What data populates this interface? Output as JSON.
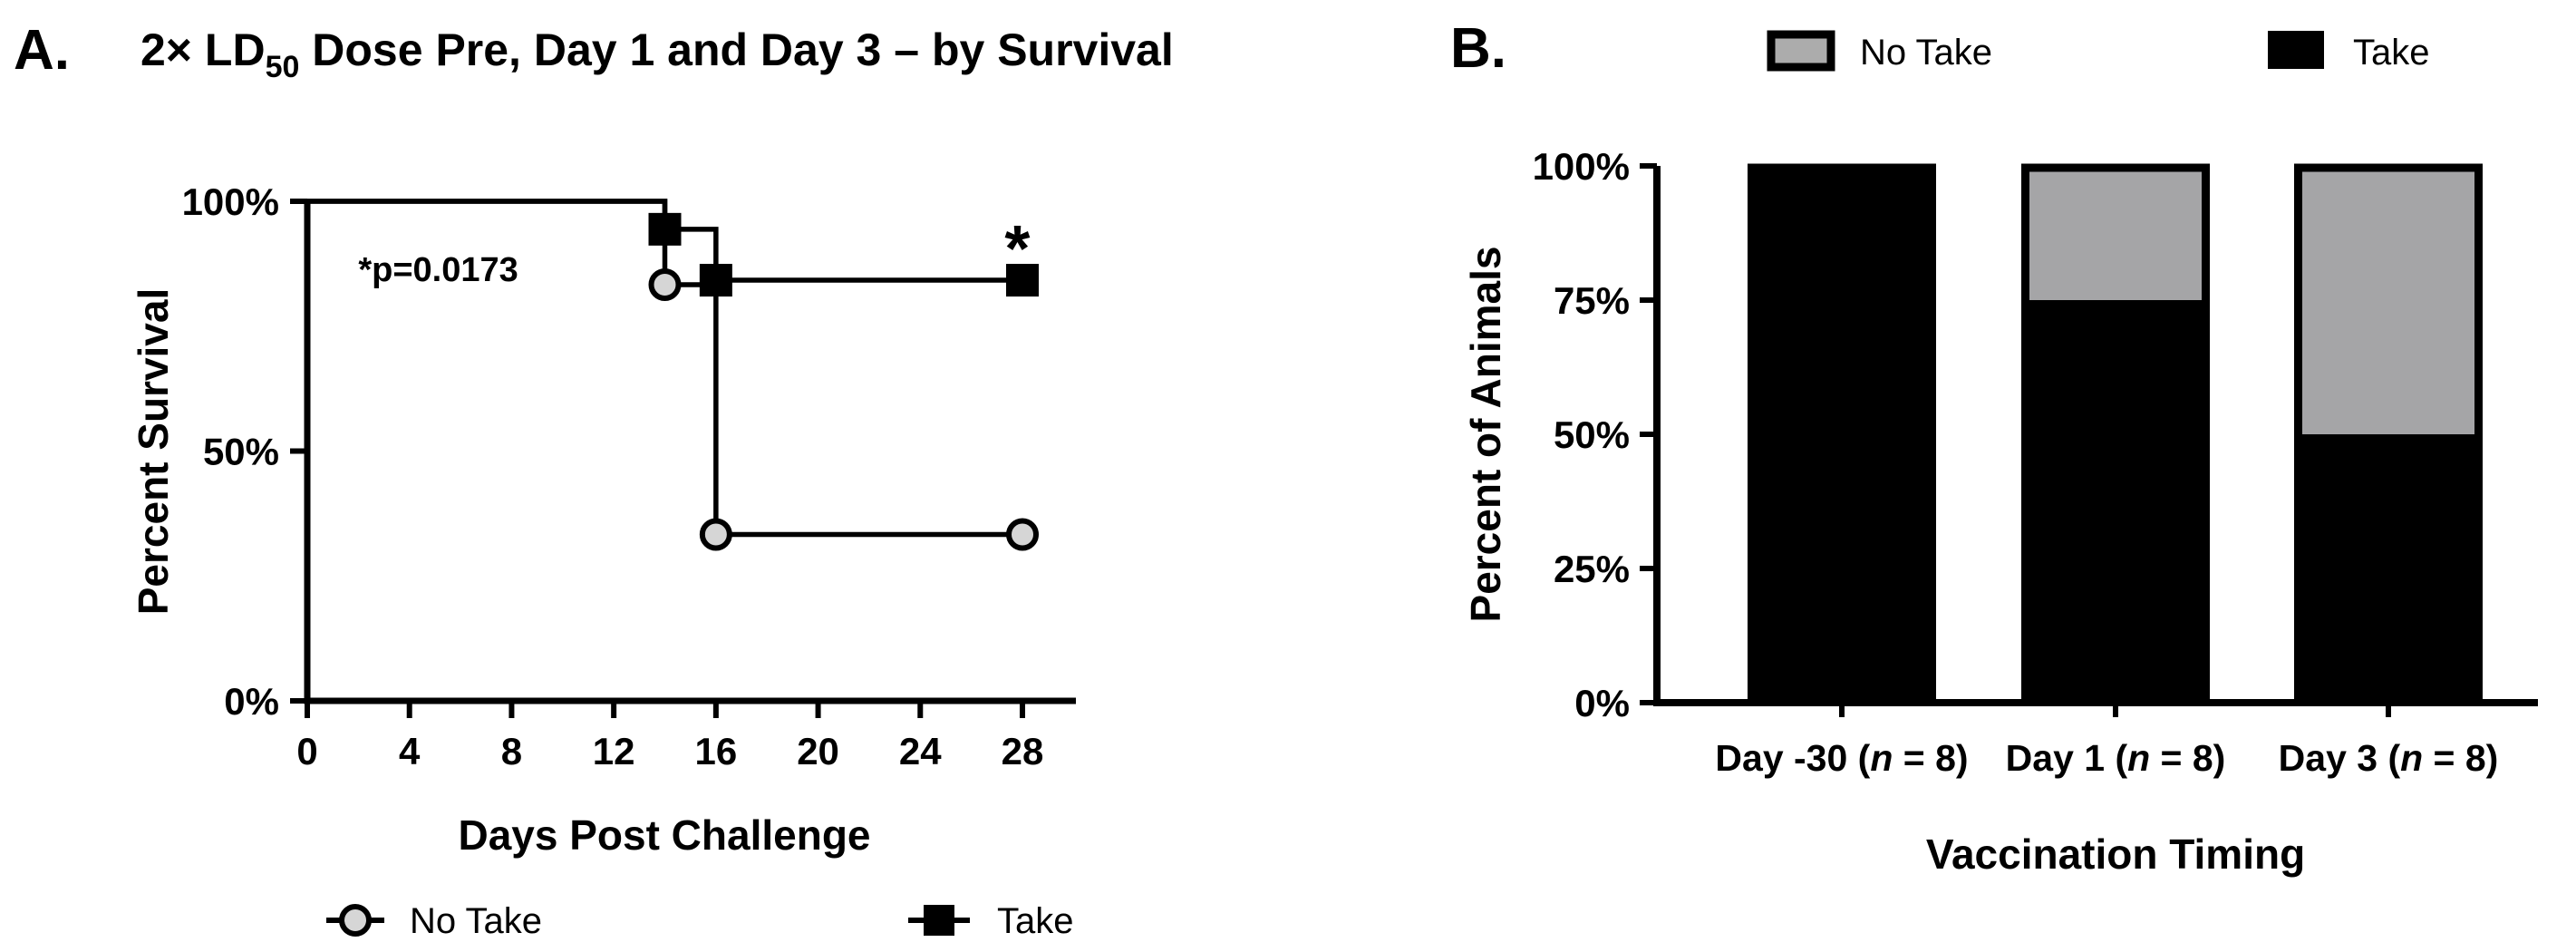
{
  "panels": {
    "a": {
      "label": "A.",
      "title_parts": [
        "2× LD",
        "50",
        " Dose Pre, Day 1 and Day 3 – by Survival"
      ],
      "x_axis_label": "Days Post Challenge",
      "y_axis_label": "Percent Survival",
      "p_value_note": "*p=0.0173",
      "legend": [
        {
          "label": "No Take",
          "marker": "circle"
        },
        {
          "label": "Take",
          "marker": "square"
        }
      ]
    },
    "b": {
      "label": "B.",
      "x_axis_label": "Vaccination Timing",
      "y_axis_label": "Percent of Animals",
      "legend": [
        {
          "label": "No Take",
          "swatch": "gray"
        },
        {
          "label": "Take",
          "swatch": "black"
        }
      ]
    }
  },
  "colors": {
    "black": "#000000",
    "bar_gray": "#A5A5A7",
    "legend_swatch_gray": "#ACACAC",
    "marker_gray": "#D6D6D6",
    "background": "#FFFFFF"
  },
  "chart_data": [
    {
      "type": "line",
      "subtype": "kaplan-meier-step",
      "panel": "A",
      "title": "2× LD50 Dose Pre, Day 1 and Day 3 – by Survival",
      "xlabel": "Days Post Challenge",
      "ylabel": "Percent Survival",
      "xlim": [
        0,
        28
      ],
      "ylim": [
        0,
        100
      ],
      "grid": false,
      "legend_position": "bottom",
      "x_ticks": [
        0,
        4,
        8,
        12,
        16,
        20,
        24,
        28
      ],
      "y_ticks": [
        {
          "value": 0,
          "label": "0%"
        },
        {
          "value": 50,
          "label": "50%"
        },
        {
          "value": 100,
          "label": "100%"
        }
      ],
      "series": [
        {
          "name": "No Take",
          "marker": "circle",
          "steps": [
            [
              0,
              100
            ],
            [
              14,
              100
            ],
            [
              14,
              83.3
            ],
            [
              16,
              83.3
            ],
            [
              16,
              33.3
            ],
            [
              28,
              33.3
            ]
          ],
          "marker_points": [
            [
              14,
              83.3
            ],
            [
              16,
              33.3
            ],
            [
              28,
              33.3
            ]
          ]
        },
        {
          "name": "Take",
          "marker": "square",
          "steps": [
            [
              0,
              100
            ],
            [
              14,
              100
            ],
            [
              14,
              94.4
            ],
            [
              16,
              94.4
            ],
            [
              16,
              84.2
            ],
            [
              28,
              84.2
            ]
          ],
          "marker_points": [
            [
              14,
              94.4
            ],
            [
              16,
              84.2
            ],
            [
              28,
              84.2
            ]
          ]
        }
      ],
      "annotations": [
        {
          "text": "*p=0.0173",
          "x": 2,
          "y": 84,
          "anchor": "start",
          "size": 38,
          "name": "p-value-annotation"
        },
        {
          "text": "*",
          "x": 27.8,
          "y": 86,
          "anchor": "middle",
          "size": 72,
          "name": "significance-asterisk"
        }
      ]
    },
    {
      "type": "bar",
      "subtype": "stacked-percent",
      "panel": "B",
      "xlabel": "Vaccination Timing",
      "ylabel": "Percent of Animals",
      "ylim": [
        0,
        100
      ],
      "grid": false,
      "legend_position": "top",
      "y_ticks": [
        {
          "value": 0,
          "label": "0%"
        },
        {
          "value": 25,
          "label": "25%"
        },
        {
          "value": 50,
          "label": "50%"
        },
        {
          "value": 75,
          "label": "75%"
        },
        {
          "value": 100,
          "label": "100%"
        }
      ],
      "categories": [
        [
          "Day -30 (",
          "n",
          " = 8)"
        ],
        [
          "Day 1 (",
          "n",
          " = 8)"
        ],
        [
          "Day 3 (",
          "n",
          " = 8)"
        ]
      ],
      "series": [
        {
          "name": "Take",
          "color_key": "black",
          "values": [
            100,
            75,
            50
          ]
        },
        {
          "name": "No Take",
          "color_key": "bar_gray",
          "values": [
            0,
            25,
            50
          ]
        }
      ]
    }
  ]
}
